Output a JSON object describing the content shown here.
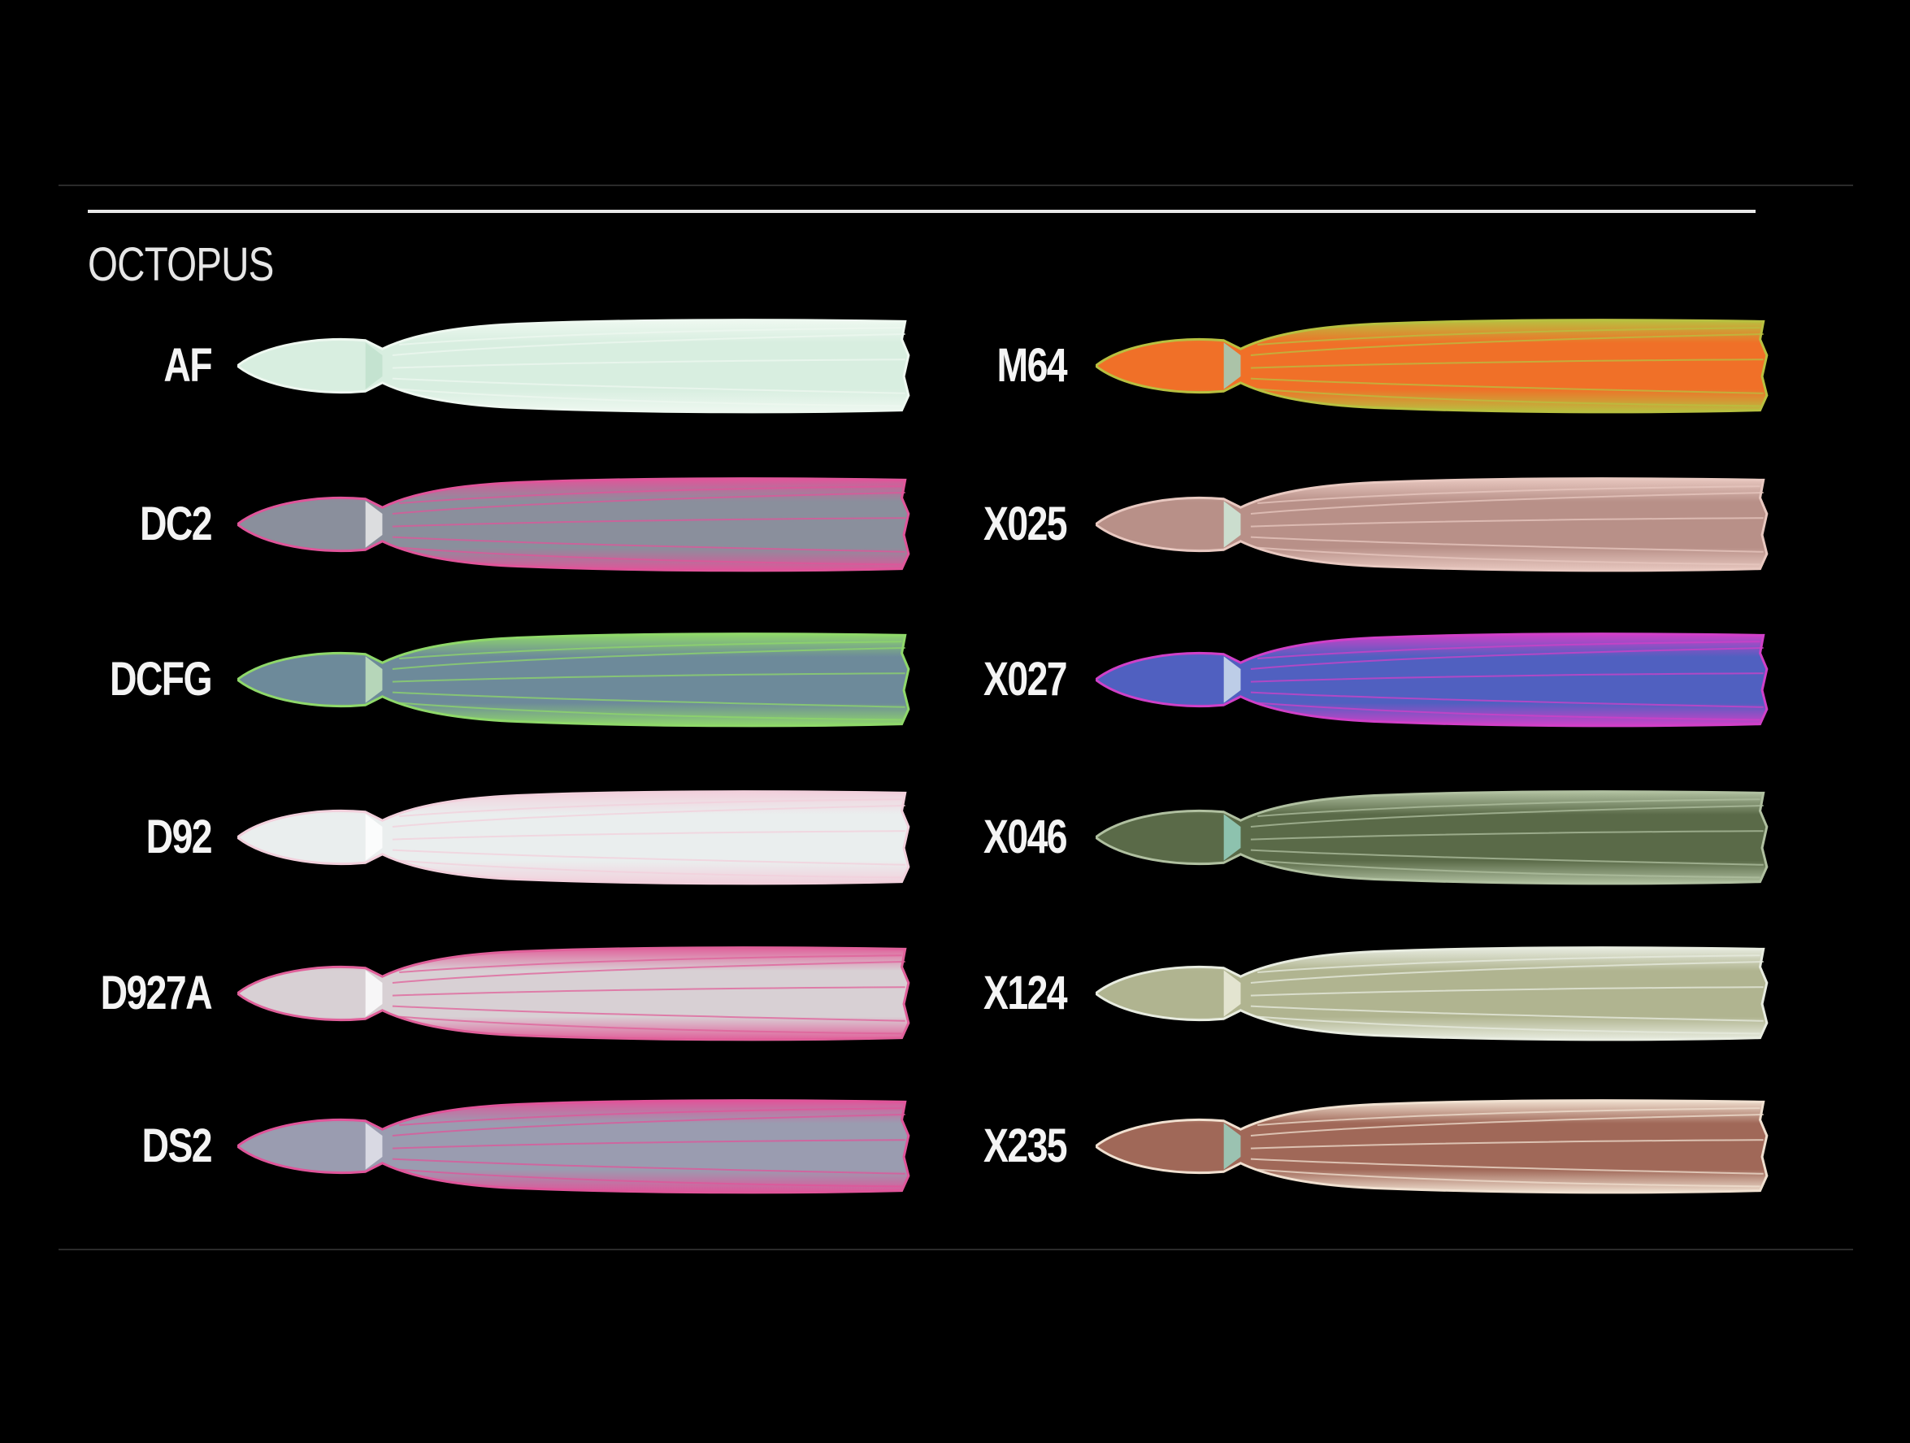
{
  "section_title": "OCTOPUS",
  "left_column": [
    {
      "code": "AF",
      "body": "#d8eee0",
      "edge": "#eef8f0",
      "accent": "#bfe0cc"
    },
    {
      "code": "DC2",
      "body": "#8a8f9c",
      "edge": "#e0559a",
      "accent": "#f0f0f0"
    },
    {
      "code": "DCFG",
      "body": "#6d8a9a",
      "edge": "#8fd86a",
      "accent": "#c8e8c0"
    },
    {
      "code": "D92",
      "body": "#eaeeee",
      "edge": "#f2d0dc",
      "accent": "#ffffff"
    },
    {
      "code": "D927A",
      "body": "#d8d0d4",
      "edge": "#e0609a",
      "accent": "#ffffff"
    },
    {
      "code": "DS2",
      "body": "#9a9cb0",
      "edge": "#e0559a",
      "accent": "#e8e8f0"
    }
  ],
  "right_column": [
    {
      "code": "M64",
      "body": "#f07028",
      "edge": "#b8c040",
      "accent": "#9ad8c8"
    },
    {
      "code": "X025",
      "body": "#b89088",
      "edge": "#e8c8c0",
      "accent": "#d0f0e0"
    },
    {
      "code": "X027",
      "body": "#5060c0",
      "edge": "#d040c8",
      "accent": "#d8e8f0"
    },
    {
      "code": "X046",
      "body": "#5a6a48",
      "edge": "#b0c0a0",
      "accent": "#9ad8c8"
    },
    {
      "code": "X124",
      "body": "#b0b490",
      "edge": "#e8ece0",
      "accent": "#f0f0e0"
    },
    {
      "code": "X235",
      "body": "#a06858",
      "edge": "#f0e0d0",
      "accent": "#9ad8c8"
    }
  ]
}
